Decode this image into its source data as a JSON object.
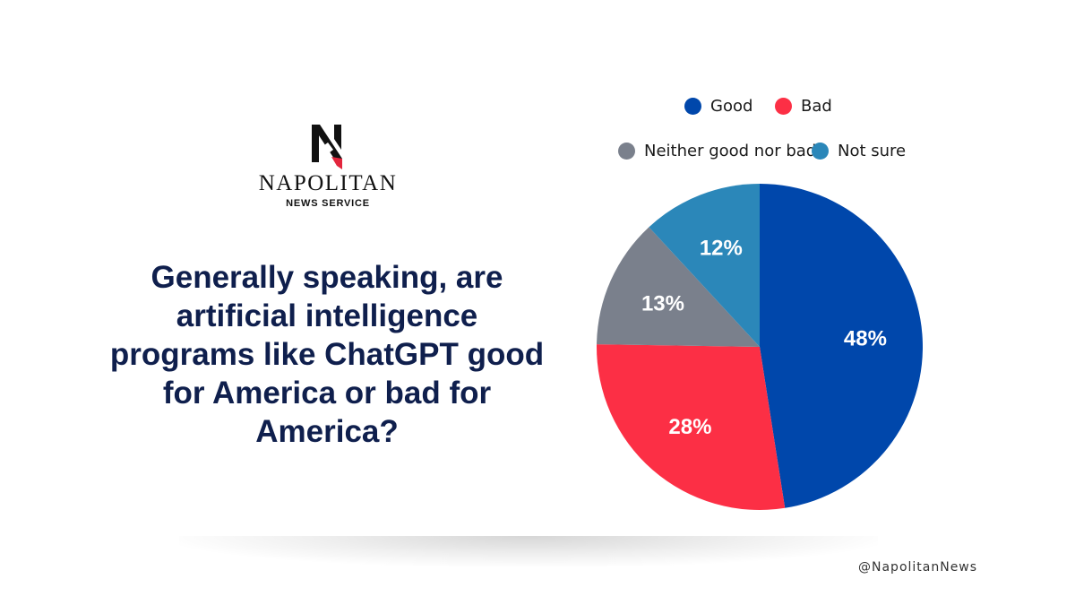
{
  "brand": {
    "name": "NAPOLITAN",
    "subtitle": "NEWS SERVICE",
    "handle": "@NapolitanNews"
  },
  "question": "Generally speaking, are artificial intelligence programs like ChatGPT good for America or bad for America?",
  "chart_data": {
    "type": "pie",
    "categories": [
      "Good",
      "Bad",
      "Neither good nor bad",
      "Not sure"
    ],
    "values": [
      48,
      28,
      13,
      12
    ],
    "labels": [
      "48%",
      "28%",
      "13%",
      "12%"
    ],
    "colors": [
      "#0047ab",
      "#fc2f45",
      "#7a808c",
      "#2b87b9"
    ],
    "legend_position": "top-right",
    "title": ""
  }
}
